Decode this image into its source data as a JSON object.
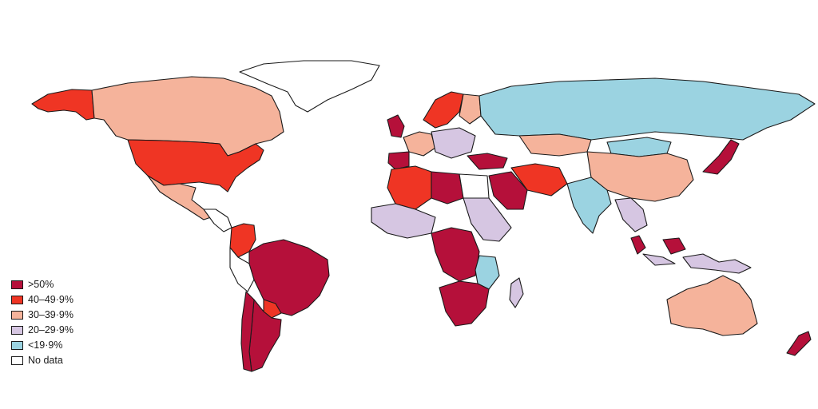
{
  "colors": {
    "gt50": "#b5103a",
    "c40_49": "#ef3524",
    "c30_39": "#f5b39b",
    "c20_29": "#d6c6e2",
    "lt19": "#9bd3e1",
    "nodata": "#ffffff",
    "outline": "#1a1a1a"
  },
  "legend": {
    "items": [
      {
        "label": ">50%",
        "color": "#b5103a"
      },
      {
        "label": "40–49·9%",
        "color": "#ef3524"
      },
      {
        "label": "30–39·9%",
        "color": "#f5b39b"
      },
      {
        "label": "20–29·9%",
        "color": "#d6c6e2"
      },
      {
        "label": "<19·9%",
        "color": "#9bd3e1"
      },
      {
        "label": "No data",
        "color": "#ffffff"
      }
    ]
  },
  "regions": [
    {
      "name": "alaska",
      "category": "c40_49"
    },
    {
      "name": "canada",
      "category": "c30_39"
    },
    {
      "name": "greenland",
      "category": "nodata"
    },
    {
      "name": "usa",
      "category": "c40_49"
    },
    {
      "name": "mexico",
      "category": "c30_39"
    },
    {
      "name": "central-america",
      "category": "nodata"
    },
    {
      "name": "colombia",
      "category": "c40_49"
    },
    {
      "name": "brazil",
      "category": "gt50"
    },
    {
      "name": "argentina",
      "category": "gt50"
    },
    {
      "name": "chile",
      "category": "gt50"
    },
    {
      "name": "peru",
      "category": "nodata"
    },
    {
      "name": "paraguay",
      "category": "c40_49"
    },
    {
      "name": "uk",
      "category": "gt50"
    },
    {
      "name": "scandinavia",
      "category": "c40_49"
    },
    {
      "name": "finland",
      "category": "c30_39"
    },
    {
      "name": "western-europe",
      "category": "c30_39"
    },
    {
      "name": "iberia",
      "category": "gt50"
    },
    {
      "name": "central-europe",
      "category": "c20_29"
    },
    {
      "name": "russia",
      "category": "lt19"
    },
    {
      "name": "kazakhstan",
      "category": "c30_39"
    },
    {
      "name": "china",
      "category": "c30_39"
    },
    {
      "name": "mongolia",
      "category": "lt19"
    },
    {
      "name": "india",
      "category": "lt19"
    },
    {
      "name": "iran",
      "category": "c40_49"
    },
    {
      "name": "saudi-arabia",
      "category": "gt50"
    },
    {
      "name": "turkey",
      "category": "gt50"
    },
    {
      "name": "japan",
      "category": "gt50"
    },
    {
      "name": "algeria",
      "category": "c40_49"
    },
    {
      "name": "libya",
      "category": "gt50"
    },
    {
      "name": "egypt",
      "category": "nodata"
    },
    {
      "name": "west-africa",
      "category": "c20_29"
    },
    {
      "name": "central-africa",
      "category": "gt50"
    },
    {
      "name": "east-africa",
      "category": "c20_29"
    },
    {
      "name": "southern-africa",
      "category": "gt50"
    },
    {
      "name": "mozambique",
      "category": "lt19"
    },
    {
      "name": "madagascar",
      "category": "c20_29"
    },
    {
      "name": "southeast-asia",
      "category": "c20_29"
    },
    {
      "name": "malaysia",
      "category": "gt50"
    },
    {
      "name": "indonesia",
      "category": "c20_29"
    },
    {
      "name": "australia",
      "category": "c30_39"
    },
    {
      "name": "new-zealand",
      "category": "gt50"
    }
  ]
}
